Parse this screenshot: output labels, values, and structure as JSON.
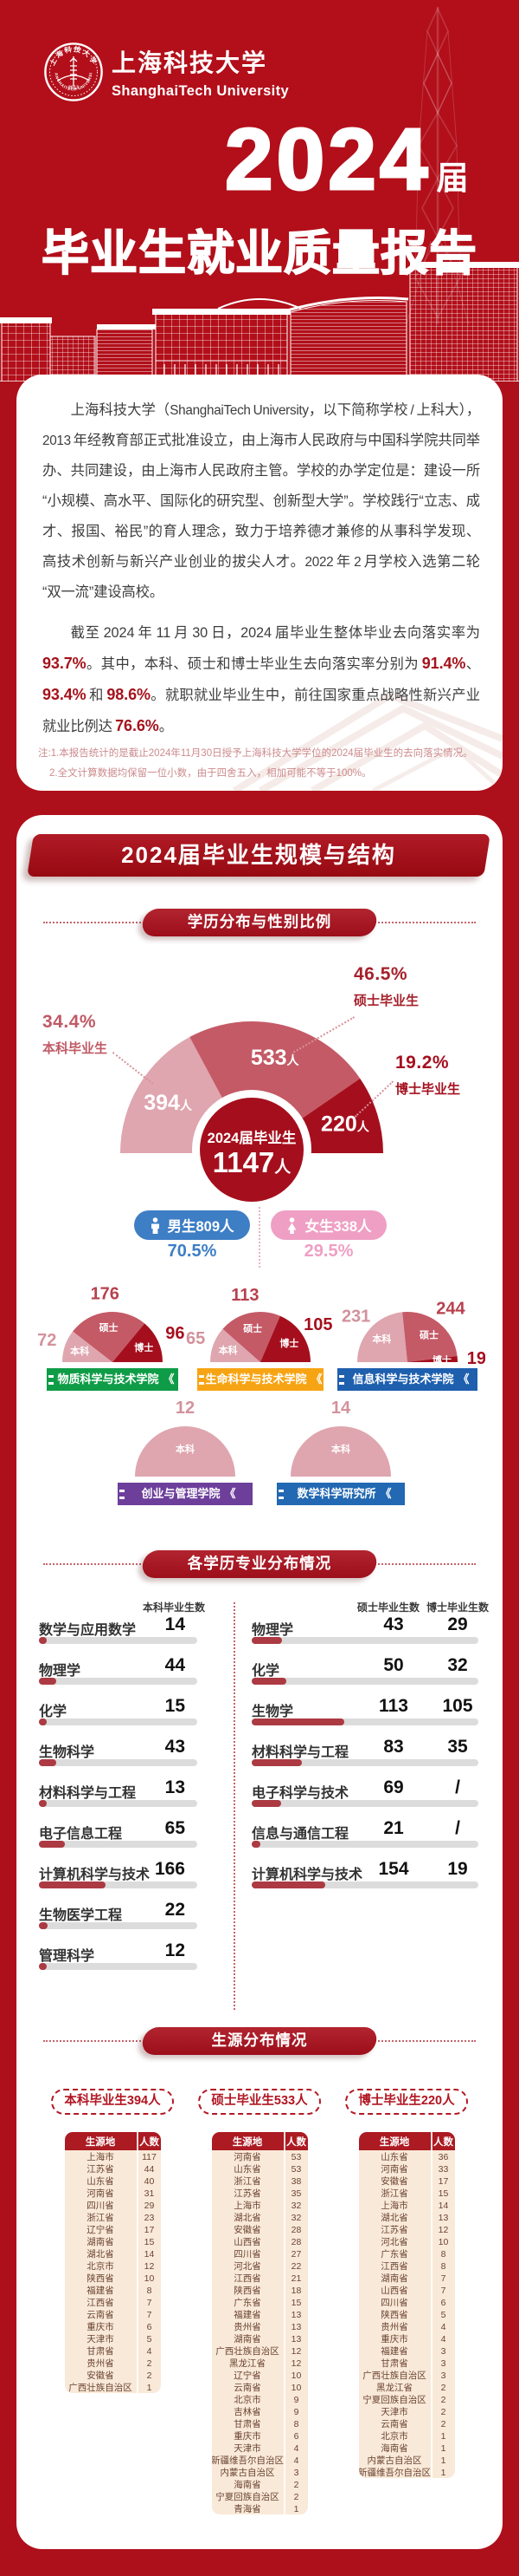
{
  "colors": {
    "page_red": "#AE101B",
    "header_red": "#B20F1A",
    "deep_banner_red": "#9C0E1A",
    "bar_fill": "#AC3A43",
    "bar_track": "#DCDCDC",
    "table_row_beige": "#F9E9D8",
    "table_header_red": "#AC1A22",
    "male_blue": "#3D7EC5",
    "female_pink": "#EF9FC4",
    "pie_bachelor_pink": "#DFA6AF",
    "pie_master_rose": "#C45A66",
    "pie_doctor_dark_red": "#A50F1D"
  },
  "header": {
    "school_cn": "上海科技大学",
    "school_en": "ShanghaiTech University",
    "seal_top": "上海科技大学",
    "seal_bottom": "SHANGHAITECH UNIVERSITY",
    "seal_year": "2013",
    "year": "2024",
    "year_suffix": "届",
    "report_title": "毕业生就业质量报告"
  },
  "intro": {
    "para1": "上海科技大学（ShanghaiTech University，以下简称学校 / 上科大），2013 年经教育部正式批准设立，由上海市人民政府与中国科学院共同举办、共同建设，由上海市人民政府主管。学校的办学定位是：建设一所“小规模、高水平、国际化的研究型、创新型大学”。学校践行“立志、成才、报国、裕民”的育人理念，致力于培养德才兼修的从事科学发现、高技术创新与新兴产业创业的拔尖人才。2022 年 2 月学校入选第二轮“双一流”建设高校。",
    "para2_segments": [
      {
        "text": "截至 2024 年 11 月 30 日，2024 届毕业生整体毕业去向落实率为 ",
        "highlight": false
      },
      {
        "text": "93.7%",
        "highlight": true
      },
      {
        "text": "。其中，本科、硕士和博士毕业生去向落实率分别为 ",
        "highlight": false
      },
      {
        "text": "91.4%",
        "highlight": true
      },
      {
        "text": "、",
        "highlight": false
      },
      {
        "text": "93.4%",
        "highlight": true
      },
      {
        "text": " 和 ",
        "highlight": false
      },
      {
        "text": "98.6%",
        "highlight": true
      },
      {
        "text": "。就职就业毕业生中，前往国家重点战略性新兴产业就业比例达 ",
        "highlight": false
      },
      {
        "text": "76.6%",
        "highlight": true
      },
      {
        "text": "。",
        "highlight": false
      }
    ],
    "notes": [
      "注:1.本报告统计的是截止2024年11月30日授予上海科技大学学位的2024届毕业生的去向落实情况。",
      "2.全文计算数据均保留一位小数，由于四舍五入，相加可能不等于100%。"
    ]
  },
  "section_title": "2024届毕业生规模与结构",
  "ribbon_mark": "《",
  "chart_data": [
    {
      "id": "degree_gender_pie",
      "type": "pie",
      "title": "学历分布与性别比例",
      "unit": "人",
      "center": {
        "label": "2024届毕业生",
        "value": "1147",
        "unit": "人"
      },
      "slices": [
        {
          "label": "本科毕业生",
          "value": 394,
          "percent": "34.4%",
          "color": "#DFA6AF"
        },
        {
          "label": "硕士毕业生",
          "value": 533,
          "percent": "46.5%",
          "color": "#C45A66"
        },
        {
          "label": "博士毕业生",
          "value": 220,
          "percent": "19.2%",
          "color": "#A50F1D"
        }
      ],
      "gender": [
        {
          "label": "男生",
          "value": 809,
          "unit": "人",
          "percent": "70.5%",
          "color": "#3D7EC5"
        },
        {
          "label": "女生",
          "value": 338,
          "unit": "人",
          "percent": "29.5%",
          "color": "#EF9FC4"
        }
      ]
    },
    {
      "id": "college_pies",
      "type": "pie",
      "items": [
        {
          "name": "物质科学与技术学院",
          "color": "#0F9C47",
          "slices": [
            {
              "label": "本科",
              "value": 72
            },
            {
              "label": "硕士",
              "value": 176
            },
            {
              "label": "博士",
              "value": 96
            }
          ]
        },
        {
          "name": "生命科学与技术学院",
          "color": "#F7A414",
          "slices": [
            {
              "label": "本科",
              "value": 65
            },
            {
              "label": "硕士",
              "value": 113
            },
            {
              "label": "博士",
              "value": 105
            }
          ]
        },
        {
          "name": "信息科学与技术学院",
          "color": "#1E5FAE",
          "slices": [
            {
              "label": "本科",
              "value": 231
            },
            {
              "label": "硕士",
              "value": 244
            },
            {
              "label": "博士",
              "value": 19
            }
          ]
        },
        {
          "name": "创业与管理学院",
          "color": "#6D3F9B",
          "slices": [
            {
              "label": "本科",
              "value": 12
            }
          ]
        },
        {
          "name": "数学科学研究所",
          "color": "#2268B2",
          "slices": [
            {
              "label": "本科",
              "value": 14
            }
          ]
        }
      ]
    },
    {
      "id": "majors_bachelor",
      "type": "bar",
      "title": "各学历专业分布情况",
      "column_header": "本科毕业生数",
      "axis_total": 394,
      "rows": [
        {
          "label": "数学与应用数学",
          "value": 14
        },
        {
          "label": "物理学",
          "value": 44
        },
        {
          "label": "化学",
          "value": 15
        },
        {
          "label": "生物科学",
          "value": 43
        },
        {
          "label": "材料科学与工程",
          "value": 13
        },
        {
          "label": "电子信息工程",
          "value": 65
        },
        {
          "label": "计算机科学与技术",
          "value": 166
        },
        {
          "label": "生物医学工程",
          "value": 22
        },
        {
          "label": "管理科学",
          "value": 12
        }
      ]
    },
    {
      "id": "majors_graduate",
      "type": "bar",
      "column_headers": [
        "硕士毕业生数",
        "博士毕业生数"
      ],
      "axis_total": 533,
      "rows": [
        {
          "label": "物理学",
          "master": "43",
          "doctor": "29"
        },
        {
          "label": "化学",
          "master": "50",
          "doctor": "32"
        },
        {
          "label": "生物学",
          "master": "113",
          "doctor": "105"
        },
        {
          "label": "材料科学与工程",
          "master": "83",
          "doctor": "35"
        },
        {
          "label": "电子科学与技术",
          "master": "69",
          "doctor": "/"
        },
        {
          "label": "信息与通信工程",
          "master": "21",
          "doctor": "/"
        },
        {
          "label": "计算机科学与技术",
          "master": "154",
          "doctor": "19"
        }
      ]
    },
    {
      "id": "origin_tables",
      "type": "table",
      "title": "生源分布情况",
      "column_headers": [
        "生源地",
        "人数"
      ],
      "groups": [
        {
          "title": "本科毕业生394人",
          "rows": [
            [
              "上海市",
              117
            ],
            [
              "江苏省",
              44
            ],
            [
              "山东省",
              40
            ],
            [
              "河南省",
              31
            ],
            [
              "四川省",
              29
            ],
            [
              "浙江省",
              23
            ],
            [
              "辽宁省",
              17
            ],
            [
              "湖南省",
              15
            ],
            [
              "湖北省",
              14
            ],
            [
              "北京市",
              12
            ],
            [
              "陕西省",
              10
            ],
            [
              "福建省",
              8
            ],
            [
              "江西省",
              7
            ],
            [
              "云南省",
              7
            ],
            [
              "重庆市",
              6
            ],
            [
              "天津市",
              5
            ],
            [
              "甘肃省",
              4
            ],
            [
              "贵州省",
              2
            ],
            [
              "安徽省",
              2
            ],
            [
              "广西壮族自治区",
              1
            ]
          ]
        },
        {
          "title": "硕士毕业生533人",
          "rows": [
            [
              "河南省",
              53
            ],
            [
              "山东省",
              53
            ],
            [
              "浙江省",
              38
            ],
            [
              "江苏省",
              35
            ],
            [
              "上海市",
              32
            ],
            [
              "湖北省",
              32
            ],
            [
              "安徽省",
              28
            ],
            [
              "山西省",
              28
            ],
            [
              "四川省",
              27
            ],
            [
              "河北省",
              22
            ],
            [
              "江西省",
              21
            ],
            [
              "陕西省",
              18
            ],
            [
              "广东省",
              15
            ],
            [
              "福建省",
              13
            ],
            [
              "贵州省",
              13
            ],
            [
              "湖南省",
              13
            ],
            [
              "广西壮族自治区",
              12
            ],
            [
              "黑龙江省",
              12
            ],
            [
              "辽宁省",
              10
            ],
            [
              "云南省",
              10
            ],
            [
              "北京市",
              9
            ],
            [
              "吉林省",
              9
            ],
            [
              "甘肃省",
              8
            ],
            [
              "重庆市",
              6
            ],
            [
              "天津市",
              4
            ],
            [
              "新疆维吾尔自治区",
              4
            ],
            [
              "内蒙古自治区",
              3
            ],
            [
              "海南省",
              2
            ],
            [
              "宁夏回族自治区",
              2
            ],
            [
              "青海省",
              1
            ]
          ]
        },
        {
          "title": "博士毕业生220人",
          "rows": [
            [
              "山东省",
              36
            ],
            [
              "河南省",
              33
            ],
            [
              "安徽省",
              17
            ],
            [
              "浙江省",
              15
            ],
            [
              "上海市",
              14
            ],
            [
              "湖北省",
              13
            ],
            [
              "江苏省",
              12
            ],
            [
              "河北省",
              10
            ],
            [
              "广东省",
              8
            ],
            [
              "江西省",
              8
            ],
            [
              "湖南省",
              7
            ],
            [
              "山西省",
              7
            ],
            [
              "四川省",
              6
            ],
            [
              "陕西省",
              5
            ],
            [
              "贵州省",
              4
            ],
            [
              "重庆市",
              4
            ],
            [
              "福建省",
              3
            ],
            [
              "甘肃省",
              3
            ],
            [
              "广西壮族自治区",
              3
            ],
            [
              "黑龙江省",
              2
            ],
            [
              "宁夏回族自治区",
              2
            ],
            [
              "天津市",
              2
            ],
            [
              "云南省",
              2
            ],
            [
              "北京市",
              1
            ],
            [
              "海南省",
              1
            ],
            [
              "内蒙古自治区",
              1
            ],
            [
              "新疆维吾尔自治区",
              1
            ]
          ]
        }
      ]
    }
  ]
}
